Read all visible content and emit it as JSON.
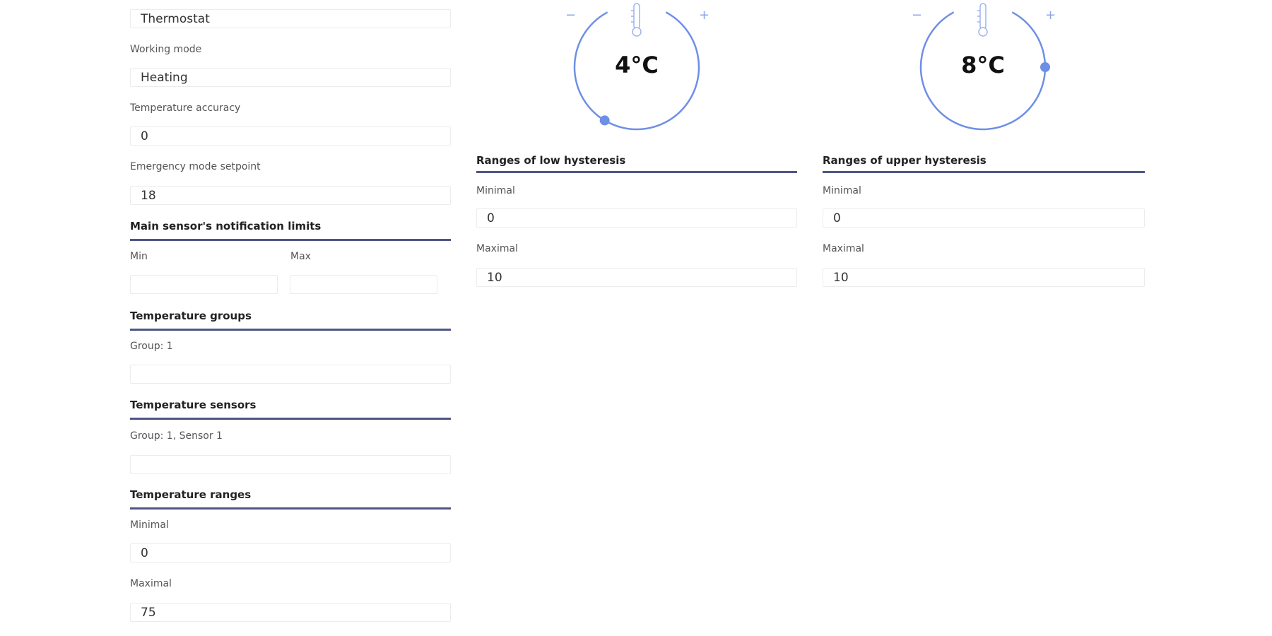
{
  "accent_color": "#6e8fe6",
  "rule_color": "#4e5585",
  "settings": {
    "type_value": "Thermostat",
    "working_mode_label": "Working mode",
    "working_mode_value": "Heating",
    "temperature_accuracy_label": "Temperature accuracy",
    "temperature_accuracy_value": "0",
    "emergency_label": "Emergency mode setpoint",
    "emergency_value": "18"
  },
  "notification_limits": {
    "title": "Main sensor's notification limits",
    "min_label": "Min",
    "min_value": "",
    "max_label": "Max",
    "max_value": ""
  },
  "temperature_groups": {
    "title": "Temperature groups",
    "group_label": "Group: 1",
    "group_value": ""
  },
  "temperature_sensors": {
    "title": "Temperature sensors",
    "sensor_label": "Group: 1, Sensor 1",
    "sensor_value": ""
  },
  "temperature_ranges": {
    "title": "Temperature ranges",
    "minimal_label": "Minimal",
    "minimal_value": "0",
    "maximal_label": "Maximal",
    "maximal_value": "75"
  },
  "low_hysteresis": {
    "dial_value": "4°C",
    "value": 4,
    "minus": "−",
    "plus": "+",
    "title": "Ranges of low hysteresis",
    "minimal_label": "Minimal",
    "minimal_value": "0",
    "maximal_label": "Maximal",
    "maximal_value": "10"
  },
  "upper_hysteresis": {
    "dial_value": "8°C",
    "value": 8,
    "minus": "−",
    "plus": "+",
    "title": "Ranges of upper hysteresis",
    "minimal_label": "Minimal",
    "minimal_value": "0",
    "maximal_label": "Maximal",
    "maximal_value": "10"
  }
}
